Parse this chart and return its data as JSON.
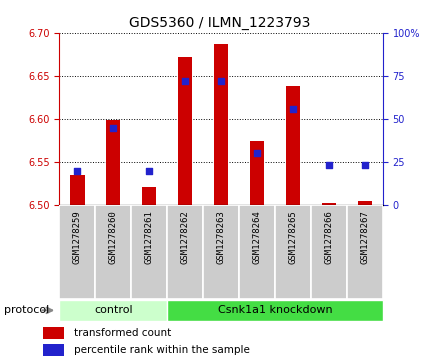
{
  "title": "GDS5360 / ILMN_1223793",
  "samples": [
    "GSM1278259",
    "GSM1278260",
    "GSM1278261",
    "GSM1278262",
    "GSM1278263",
    "GSM1278264",
    "GSM1278265",
    "GSM1278266",
    "GSM1278267"
  ],
  "transformed_counts": [
    6.535,
    6.599,
    6.521,
    6.672,
    6.687,
    6.574,
    6.638,
    6.502,
    6.505
  ],
  "percentile_ranks": [
    20,
    45,
    20,
    72,
    72,
    30,
    56,
    23,
    23
  ],
  "ylim_low": 6.5,
  "ylim_high": 6.7,
  "y2lim_low": 0,
  "y2lim_high": 100,
  "yticks": [
    6.5,
    6.55,
    6.6,
    6.65,
    6.7
  ],
  "y2ticks": [
    0,
    25,
    50,
    75,
    100
  ],
  "bar_color": "#cc0000",
  "percentile_color": "#2222cc",
  "bar_width": 0.4,
  "title_fontsize": 10,
  "control_count": 3,
  "control_label": "control",
  "knockdown_label": "Csnk1a1 knockdown",
  "control_color": "#ccffcc",
  "knockdown_color": "#44dd44",
  "protocol_label": "protocol",
  "legend_bar_label": "transformed count",
  "legend_perc_label": "percentile rank within the sample",
  "sample_box_color": "#cccccc",
  "axis_left_color": "#cc0000",
  "axis_right_color": "#2222cc",
  "tick_fontsize": 7,
  "sample_label_fontsize": 6.5
}
